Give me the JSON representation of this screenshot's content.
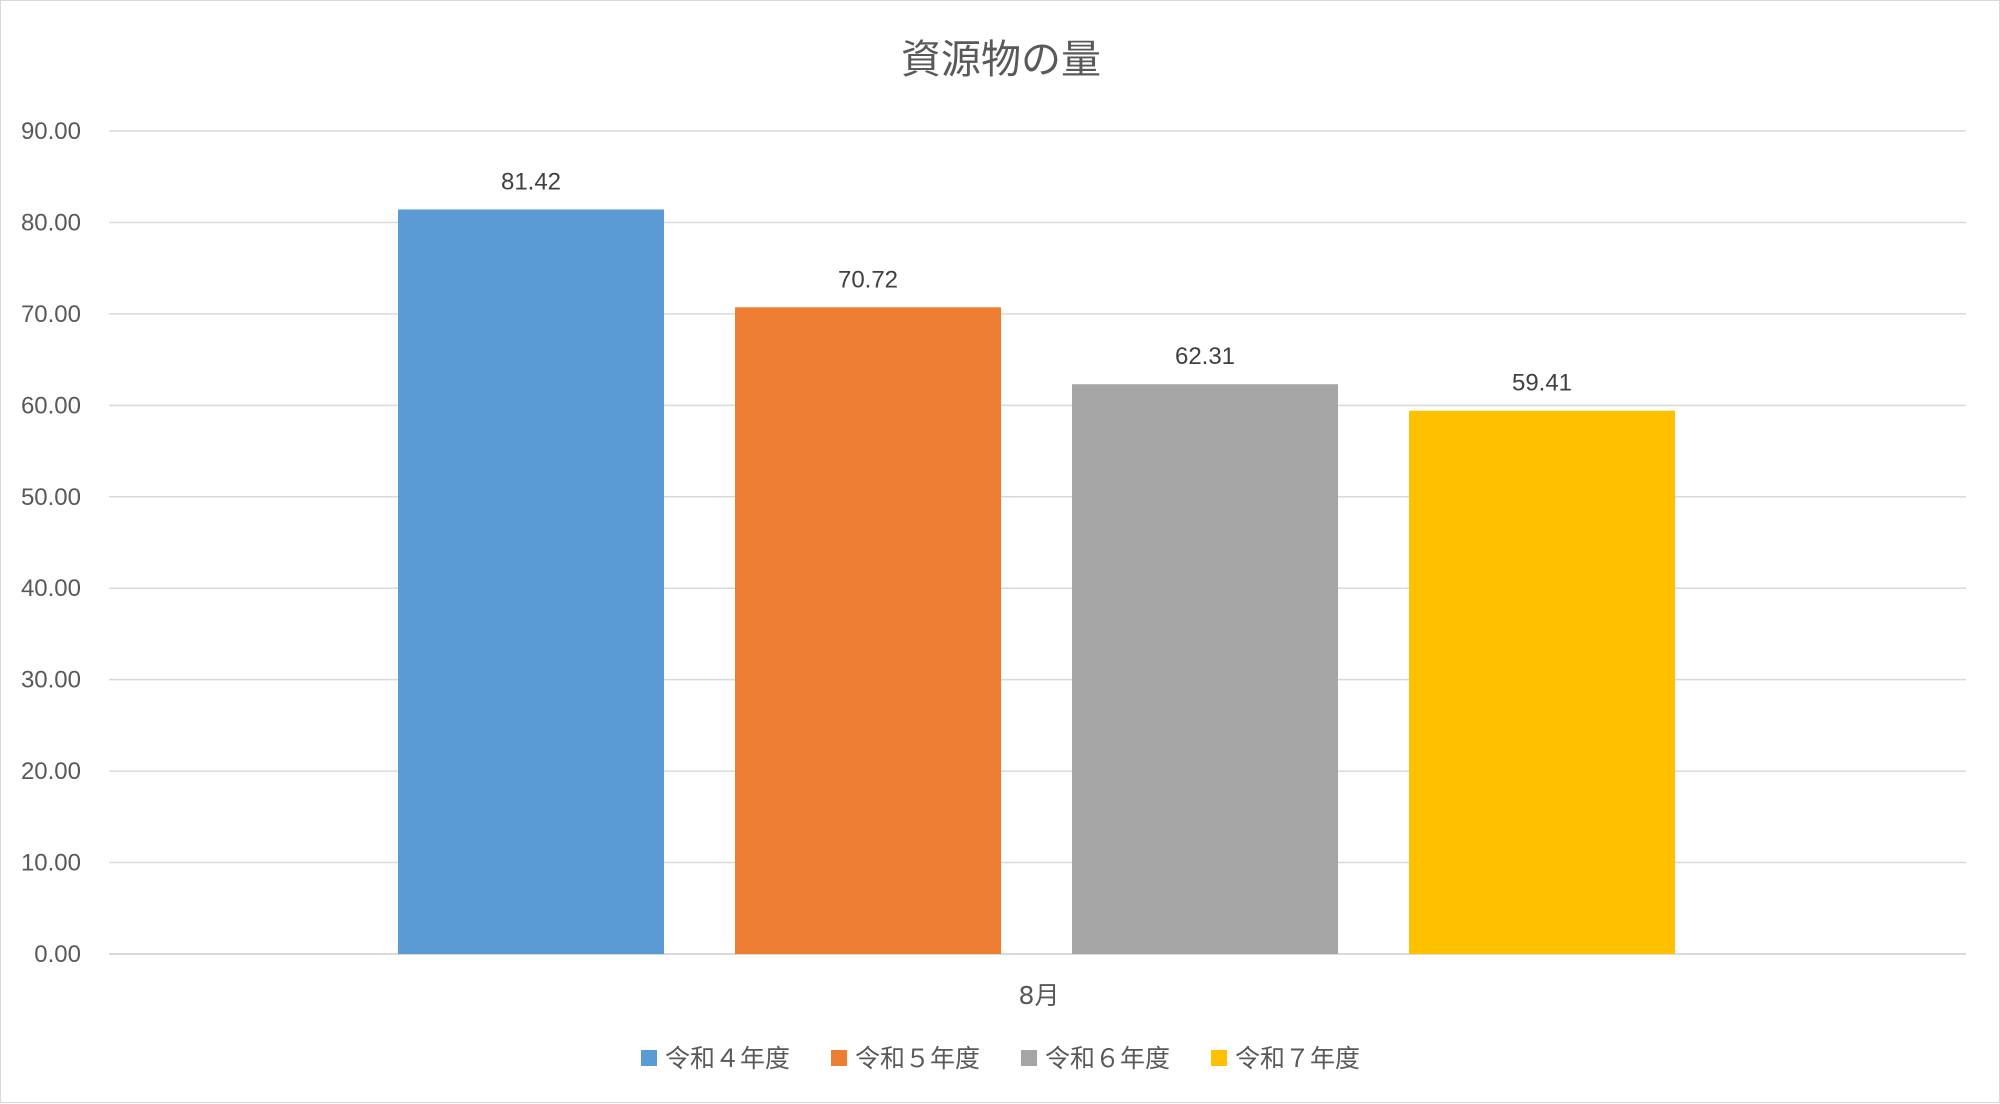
{
  "chart_data": {
    "type": "bar",
    "title": "資源物の量",
    "categories": [
      "8月"
    ],
    "series": [
      {
        "name": "令和４年度",
        "values": [
          81.42
        ],
        "color": "#5B9BD5",
        "label": "81.42"
      },
      {
        "name": "令和５年度",
        "values": [
          70.72
        ],
        "color": "#ED7D31",
        "label": "70.72"
      },
      {
        "name": "令和６年度",
        "values": [
          62.31
        ],
        "color": "#A5A5A5",
        "label": "62.31"
      },
      {
        "name": "令和７年度",
        "values": [
          59.41
        ],
        "color": "#FFC000",
        "label": "59.41"
      }
    ],
    "ylim": [
      0,
      90
    ],
    "ytick_labels": [
      "0.00",
      "10.00",
      "20.00",
      "30.00",
      "40.00",
      "50.00",
      "60.00",
      "70.00",
      "80.00",
      "90.00"
    ],
    "grid": true,
    "legend_position": "bottom",
    "data_labels": true,
    "xlabel": "",
    "ylabel": ""
  }
}
